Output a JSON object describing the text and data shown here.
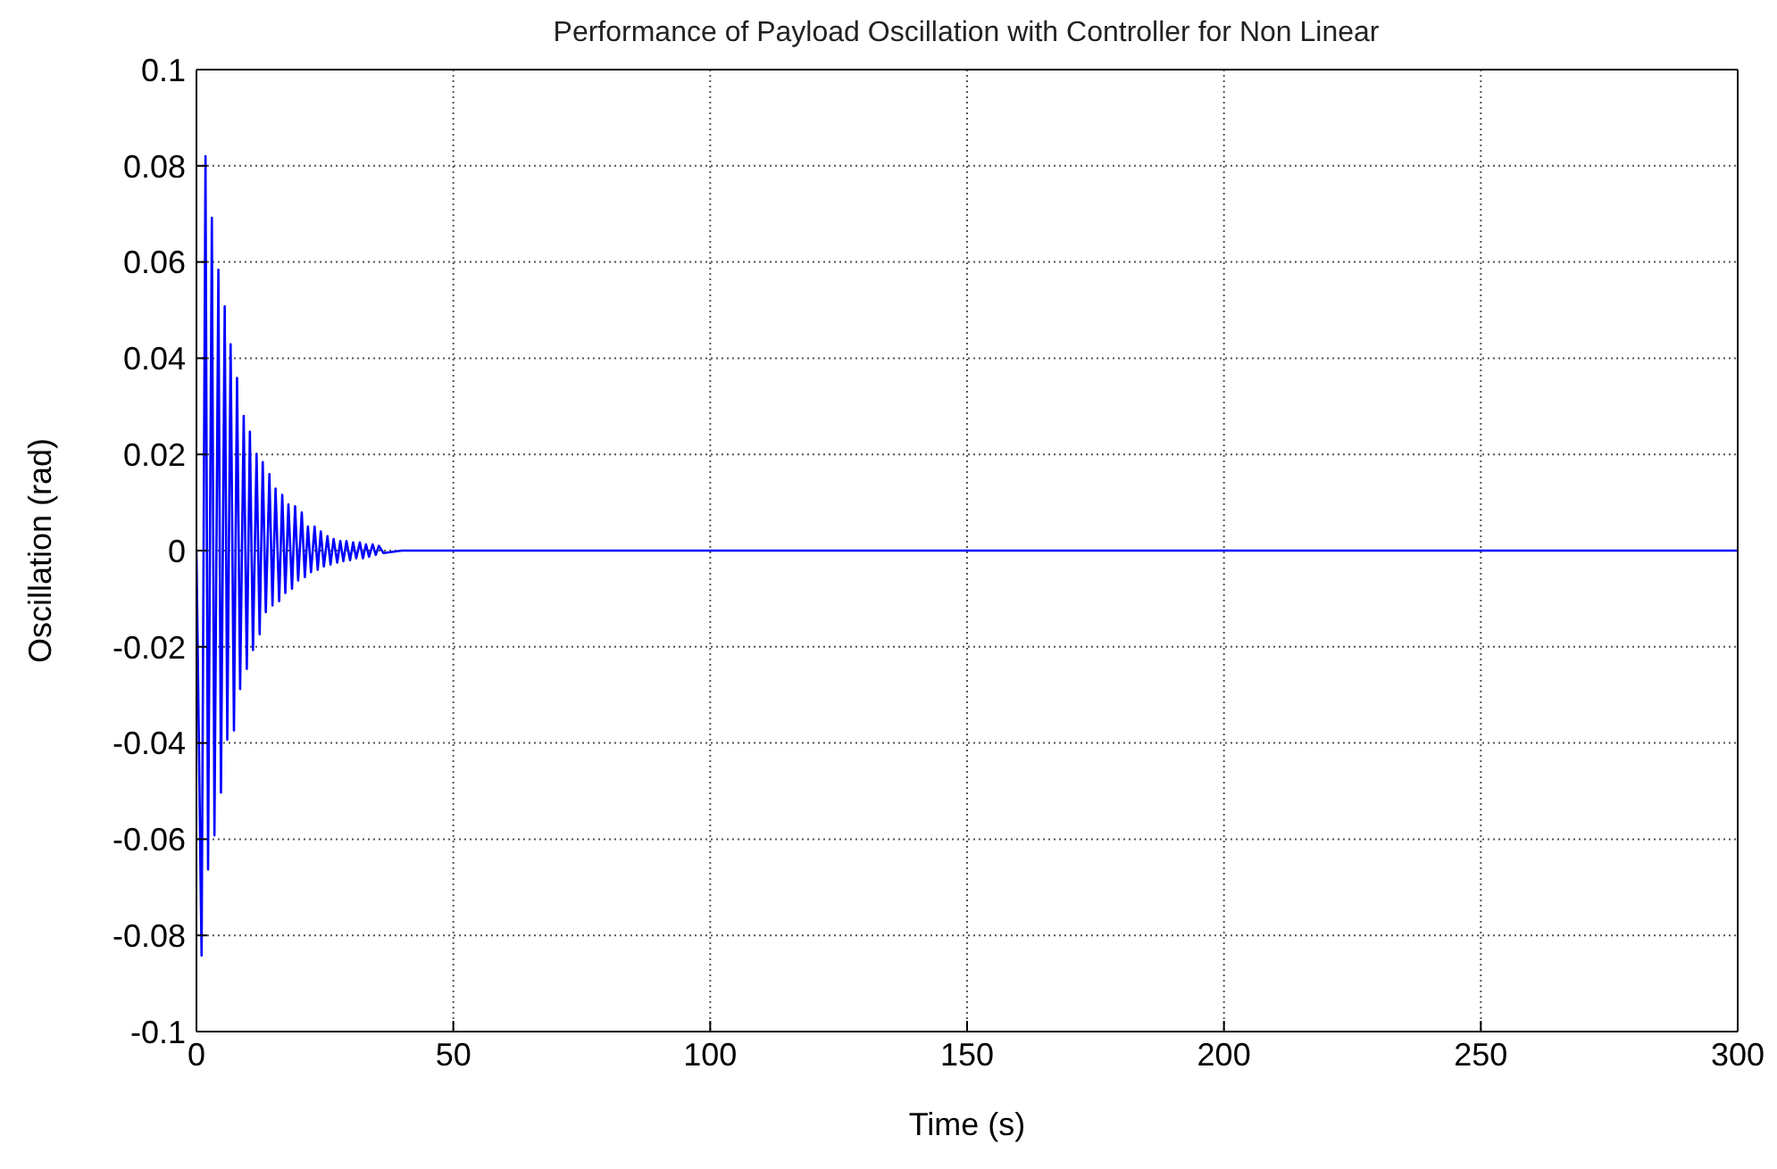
{
  "chart_data": {
    "type": "line",
    "title": "Performance of Payload Oscillation with Controller for Non Linear",
    "xlabel": "Time (s)",
    "ylabel": "Oscillation (rad)",
    "x": [
      0,
      1.0,
      1.76,
      2.26,
      3.0,
      3.5,
      4.27,
      4.77,
      5.5,
      6.0,
      6.65,
      7.3,
      7.9,
      8.5,
      9.2,
      9.8,
      10.4,
      11.0,
      11.7,
      12.3,
      12.9,
      13.5,
      14.2,
      14.8,
      15.4,
      16.1,
      16.7,
      17.3,
      17.9,
      18.6,
      19.2,
      19.8,
      20.5,
      21.1,
      21.7,
      22.3,
      23.0,
      23.6,
      24.2,
      24.8,
      25.5,
      26.1,
      26.7,
      27.4,
      28.0,
      28.6,
      29.2,
      29.9,
      30.5,
      31.1,
      31.8,
      32.4,
      33.0,
      33.6,
      34.3,
      34.9,
      35.5,
      36.4,
      40,
      300
    ],
    "series": [
      {
        "color": "#0000ff",
        "values": [
          0,
          -0.0842,
          0.082,
          -0.0663,
          0.0692,
          -0.0592,
          0.0584,
          -0.0503,
          0.0508,
          -0.0393,
          0.0429,
          -0.0374,
          0.0359,
          -0.0288,
          0.028,
          -0.0246,
          0.0247,
          -0.0207,
          0.0201,
          -0.0174,
          0.0184,
          -0.0128,
          0.0159,
          -0.0114,
          0.0129,
          -0.0105,
          0.0116,
          -0.0088,
          0.0096,
          -0.0079,
          0.0092,
          -0.0062,
          0.0079,
          -0.0055,
          0.005,
          -0.0045,
          0.005,
          -0.004,
          0.004,
          -0.0033,
          0.003,
          -0.0029,
          0.0024,
          -0.0025,
          0.002,
          -0.0022,
          0.002,
          -0.002,
          0.0017,
          -0.0016,
          0.0017,
          -0.0016,
          0.0013,
          -0.0013,
          0.0013,
          -0.0009,
          0.001,
          -0.0005,
          0,
          0
        ]
      }
    ],
    "xlim": [
      0,
      300
    ],
    "xticks": [
      0,
      50,
      100,
      150,
      200,
      250,
      300
    ],
    "ylim": [
      -0.1,
      0.1
    ],
    "yticks": [
      -0.1,
      -0.08,
      -0.06,
      -0.04,
      -0.02,
      0,
      0.02,
      0.04,
      0.06,
      0.08,
      0.1
    ],
    "grid": true,
    "marker": "none",
    "line_style": "solid"
  }
}
